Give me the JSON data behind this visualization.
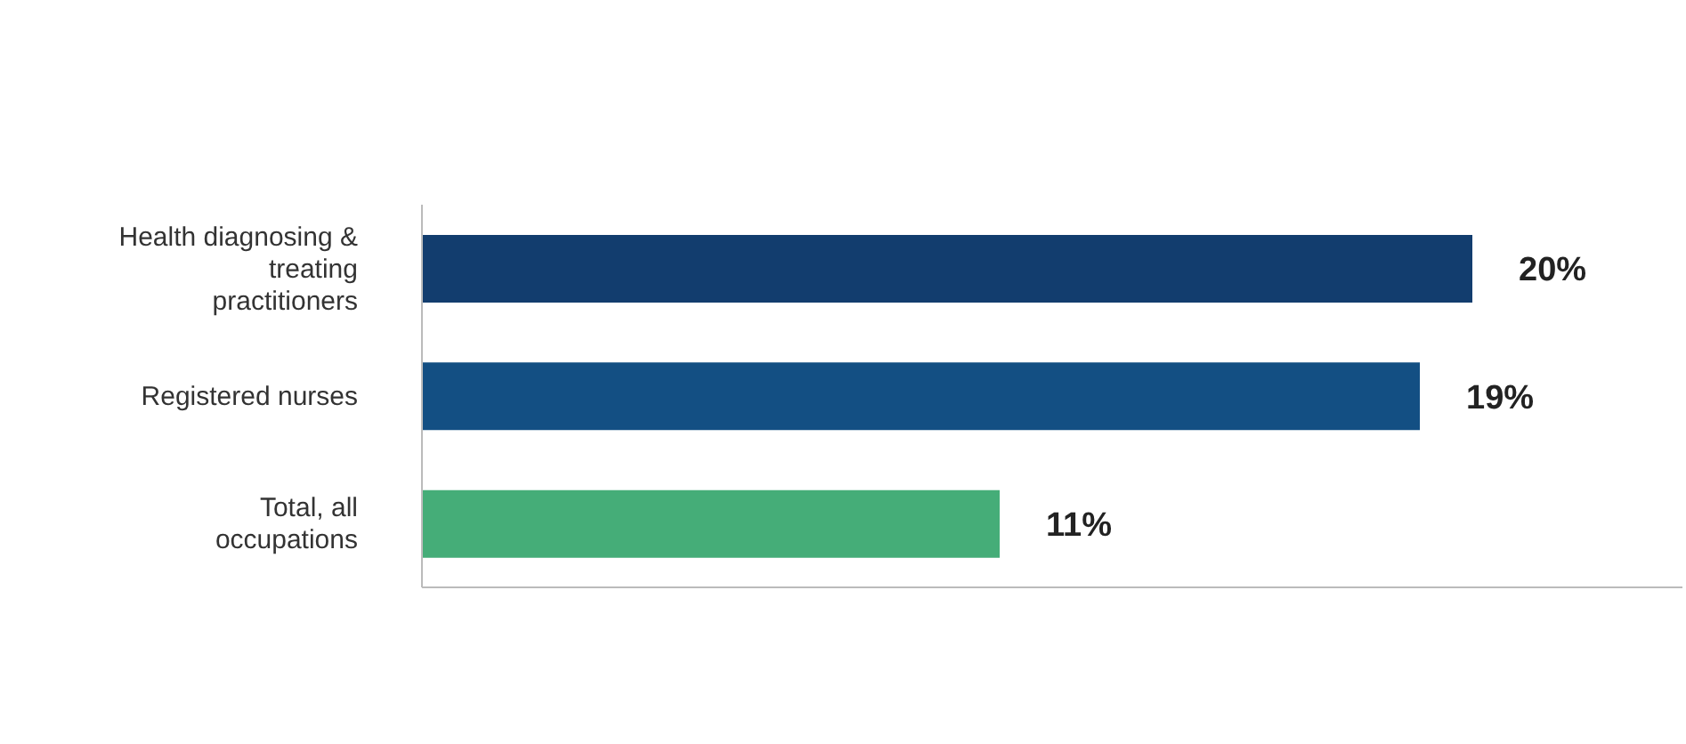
{
  "chart_data": {
    "type": "bar",
    "orientation": "horizontal",
    "categories": [
      "Health diagnosing & treating practitioners",
      "Registered nurses",
      "Total, all occupations"
    ],
    "values": [
      20,
      19,
      11
    ],
    "colors": [
      "#123d6e",
      "#134f83",
      "#45ad78"
    ],
    "value_labels": [
      "20%",
      "19%",
      "11%"
    ],
    "xlim": [
      0,
      24
    ],
    "tick_labels": "y"
  }
}
